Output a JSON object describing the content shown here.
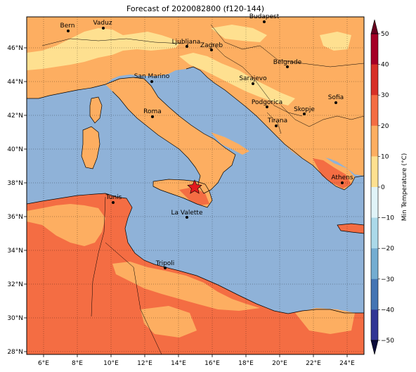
{
  "title": "Forecast of 2020082800 (f120-144)",
  "colorbar": {
    "label": "Min Temperature (°C)",
    "ticks": [
      "50",
      "40",
      "30",
      "20",
      "10",
      "0",
      "−10",
      "−20",
      "−30",
      "−40",
      "−50"
    ],
    "levels": [
      {
        "from": 40,
        "to": 50,
        "color": "#a50026"
      },
      {
        "from": 30,
        "to": 40,
        "color": "#d73027"
      },
      {
        "from": 20,
        "to": 30,
        "color": "#f46d43"
      },
      {
        "from": 10,
        "to": 20,
        "color": "#fdae61"
      },
      {
        "from": 0,
        "to": 10,
        "color": "#fee090"
      },
      {
        "from": -10,
        "to": 0,
        "color": "#e0f3f8"
      },
      {
        "from": -20,
        "to": -10,
        "color": "#abd9e9"
      },
      {
        "from": -30,
        "to": -20,
        "color": "#74add1"
      },
      {
        "from": -40,
        "to": -30,
        "color": "#4575b4"
      },
      {
        "from": -50,
        "to": -40,
        "color": "#313695"
      }
    ]
  },
  "axes": {
    "lon_labels": [
      "6°E",
      "8°E",
      "10°E",
      "12°E",
      "14°E",
      "16°E",
      "18°E",
      "20°E",
      "22°E",
      "24°E"
    ],
    "lat_labels": [
      "28°N",
      "30°N",
      "32°N",
      "34°N",
      "36°N",
      "38°N",
      "40°N",
      "42°N",
      "44°N",
      "46°N"
    ]
  },
  "colors": {
    "sea": "#8fb2d8",
    "land_warm": "#fdae61",
    "land_hot": "#f46d43",
    "land_mild": "#fee090",
    "star": "#e31a1c"
  },
  "cities": [
    {
      "name": "Bern"
    },
    {
      "name": "Vaduz"
    },
    {
      "name": "Budapest"
    },
    {
      "name": "Ljubljana"
    },
    {
      "name": "Zagreb"
    },
    {
      "name": "Belgrade"
    },
    {
      "name": "San Marino"
    },
    {
      "name": "Sarajevo"
    },
    {
      "name": "Sofia"
    },
    {
      "name": "Podgorica"
    },
    {
      "name": "Skopje"
    },
    {
      "name": "Roma"
    },
    {
      "name": "Tirana"
    },
    {
      "name": "Athens"
    },
    {
      "name": "Tunis"
    },
    {
      "name": "La Valette"
    },
    {
      "name": "Tripoli"
    }
  ]
}
